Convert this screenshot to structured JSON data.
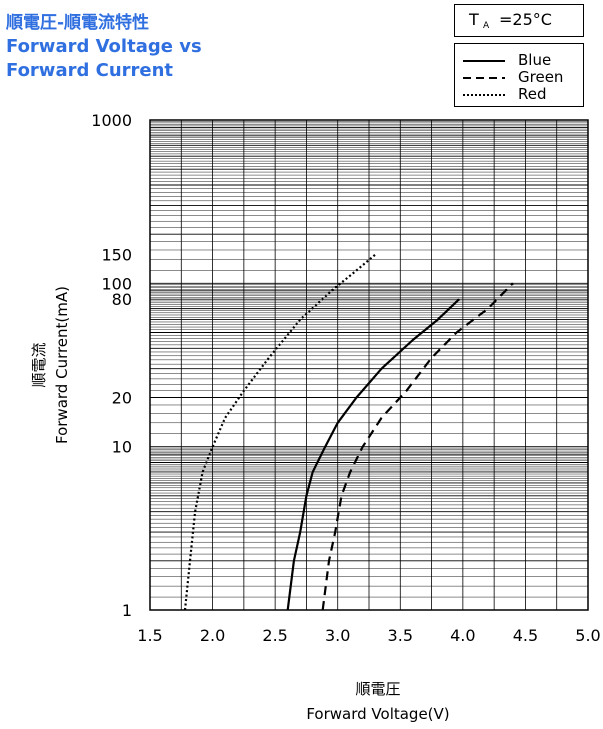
{
  "title_lines": [
    "順電圧-順電流特性",
    "Forward Voltage vs",
    "Forward Current"
  ],
  "condition": {
    "t": "T",
    "subscript": "A",
    "value": "=25°C"
  },
  "legend": [
    {
      "label": "Blue",
      "style": "solid"
    },
    {
      "label": "Green",
      "style": "dashed"
    },
    {
      "label": "Red",
      "style": "dotted"
    }
  ],
  "chart_data": {
    "type": "line",
    "xlabel_jp": "順電圧",
    "xlabel": "Forward Voltage(V)",
    "ylabel_jp": "順電流",
    "ylabel": "Forward Current(mA)",
    "xlim": [
      1.5,
      5.0
    ],
    "ylim": [
      1,
      1000
    ],
    "y_scale": "log",
    "grid": true,
    "x_ticks": [
      1.5,
      2.0,
      2.5,
      3.0,
      3.5,
      4.0,
      4.5,
      5.0
    ],
    "x_tick_labels": [
      "1.5",
      "2.0",
      "2.5",
      "3.0",
      "3.5",
      "4.0",
      "4.5",
      "5.0"
    ],
    "y_ticks": [
      1,
      10,
      20,
      80,
      100,
      150,
      1000
    ],
    "y_tick_labels": [
      "1",
      "10",
      "20",
      "80",
      "100",
      "150",
      "1000"
    ],
    "series": [
      {
        "name": "Blue",
        "style": "solid",
        "x": [
          2.6,
          2.65,
          2.7,
          2.75,
          2.8,
          2.9,
          3.0,
          3.15,
          3.35,
          3.6,
          3.8,
          3.97
        ],
        "y": [
          1,
          2,
          3,
          5,
          7,
          10,
          14,
          20,
          30,
          45,
          60,
          80
        ]
      },
      {
        "name": "Green",
        "style": "dashed",
        "x": [
          2.88,
          2.93,
          2.98,
          3.03,
          3.1,
          3.2,
          3.35,
          3.55,
          3.75,
          3.95,
          4.2,
          4.4
        ],
        "y": [
          1,
          2,
          3,
          5,
          7,
          10,
          15,
          22,
          35,
          50,
          70,
          100
        ]
      },
      {
        "name": "Red",
        "style": "dotted",
        "x": [
          1.78,
          1.82,
          1.86,
          1.92,
          2.0,
          2.1,
          2.25,
          2.45,
          2.7,
          2.95,
          3.15,
          3.3
        ],
        "y": [
          1,
          2,
          4,
          7,
          10,
          15,
          22,
          35,
          60,
          90,
          120,
          150
        ]
      }
    ]
  }
}
